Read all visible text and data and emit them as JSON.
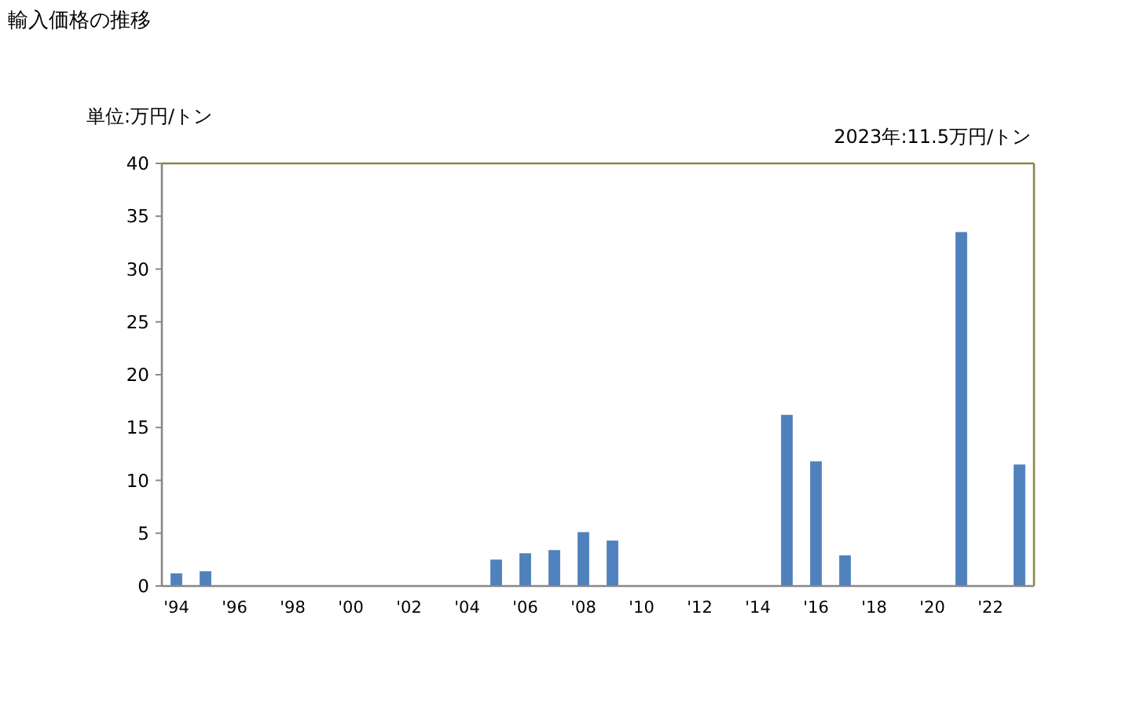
{
  "chart_data": {
    "type": "bar",
    "title": "輸入価格の推移",
    "ylabel": "単位:万円/トン",
    "annotations": [
      "2023年:11.5万円/トン"
    ],
    "categories": [
      "'94",
      null,
      "'96",
      null,
      "'98",
      null,
      "'00",
      null,
      "'02",
      null,
      "'04",
      null,
      "'06",
      null,
      "'08",
      null,
      "'10",
      null,
      "'12",
      null,
      "'14",
      null,
      "'16",
      null,
      "'18",
      null,
      "'20",
      null,
      "'22",
      null
    ],
    "values": [
      1.2,
      1.4,
      null,
      null,
      null,
      null,
      null,
      null,
      null,
      null,
      null,
      2.5,
      3.1,
      3.4,
      5.1,
      4.3,
      null,
      null,
      null,
      null,
      null,
      16.2,
      11.8,
      2.9,
      null,
      null,
      null,
      33.5,
      null,
      11.5
    ],
    "color": "#4f81bd",
    "ylim": [
      0,
      40
    ],
    "yticks": [
      0,
      5,
      10,
      15,
      20,
      25,
      30,
      35,
      40
    ],
    "grid": false
  }
}
